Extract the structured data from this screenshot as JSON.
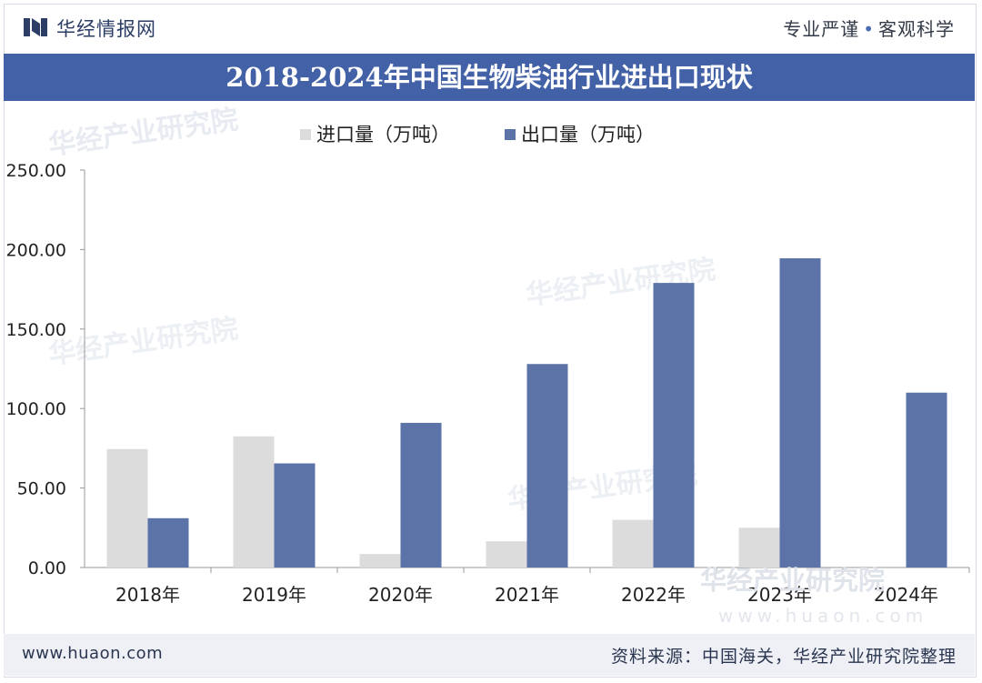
{
  "header": {
    "brand": "华经情报网",
    "tagline_left": "专业严谨",
    "tagline_right": "客观科学"
  },
  "title": "2018-2024年中国生物柴油行业进出口现状",
  "footer": {
    "website": "www.huaon.com",
    "source": "资料来源：中国海关，华经产业研究院整理"
  },
  "watermark": {
    "text": "华经产业研究院",
    "url": "www.huaon.com"
  },
  "colors": {
    "title_bar": "#4361a6",
    "import": "#dcdcdc",
    "export": "#5b73a7"
  },
  "chart_data": {
    "type": "bar",
    "title": "2018-2024年中国生物柴油行业进出口现状",
    "categories": [
      "2018年",
      "2019年",
      "2020年",
      "2021年",
      "2022年",
      "2023年",
      "2024年"
    ],
    "series": [
      {
        "name": "进口量（万吨）",
        "values": [
          74.5,
          82.5,
          8.5,
          16.5,
          30,
          25,
          0
        ]
      },
      {
        "name": "出口量（万吨）",
        "values": [
          31,
          65.5,
          91,
          128,
          179,
          194.5,
          110
        ]
      }
    ],
    "yticks": [
      "0.00",
      "50.00",
      "100.00",
      "150.00",
      "200.00",
      "250.00"
    ],
    "ylim": [
      0,
      250
    ],
    "xlabel": "",
    "ylabel": "",
    "legend": "top-left",
    "grid": false
  }
}
